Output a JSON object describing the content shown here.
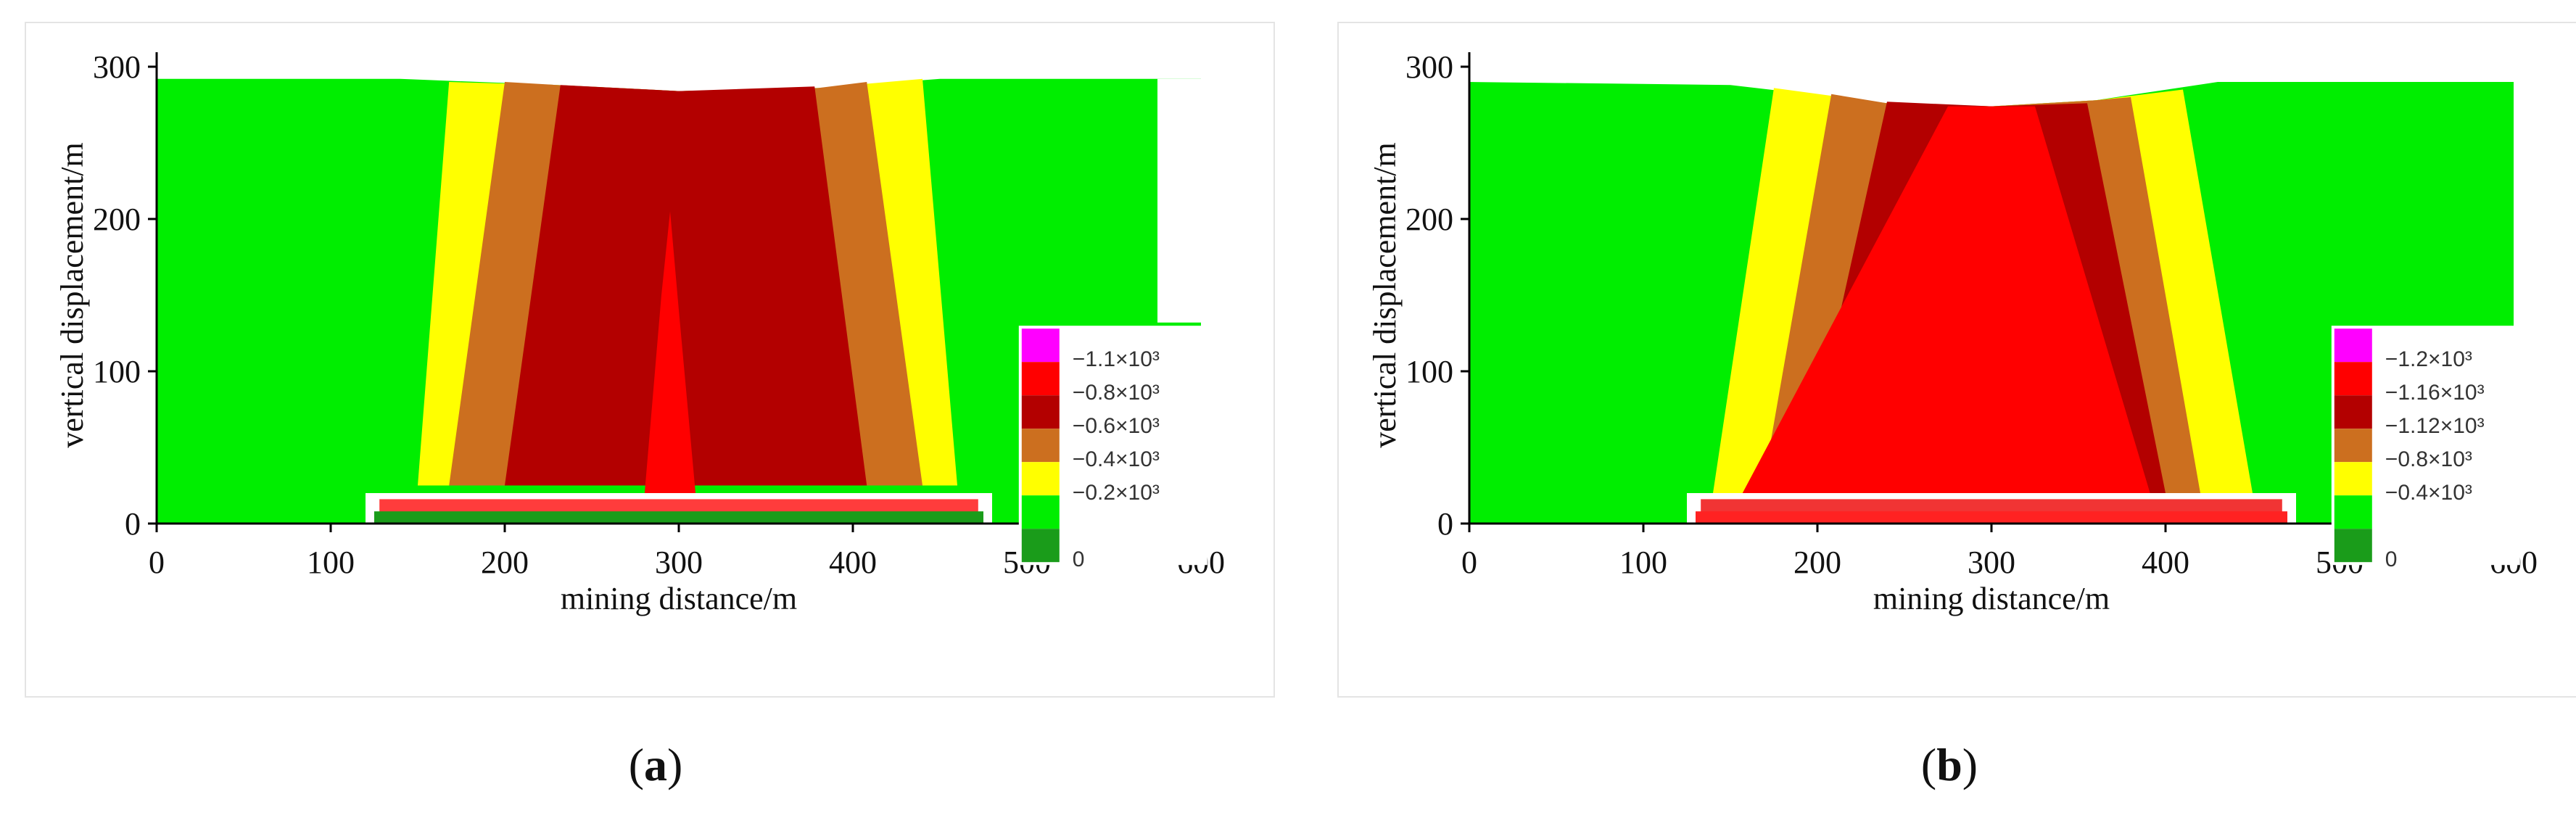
{
  "figures": [
    {
      "id": "a",
      "caption_letter": "a",
      "chart_data": {
        "type": "heatmap",
        "title": "",
        "xlabel": "mining distance/m",
        "ylabel": "vertical displacement/m",
        "xlim": [
          0,
          600
        ],
        "ylim": [
          0,
          300
        ],
        "x_ticks": [
          0,
          100,
          200,
          300,
          400,
          500,
          600
        ],
        "y_ticks": [
          0,
          100,
          200,
          300
        ],
        "legend_position": "bottom-right",
        "legend": [
          {
            "label": "−1.1×10³",
            "color": "#ff00ff"
          },
          {
            "label": "−0.8×10³",
            "color": "#ff0000"
          },
          {
            "label": "−0.6×10³",
            "color": "#b30000"
          },
          {
            "label": "−0.4×10³",
            "color": "#cc6f1f"
          },
          {
            "label": "−0.2×10³",
            "color": "#ffff00"
          },
          {
            "label": "",
            "color": "#00ee00"
          },
          {
            "label": "0",
            "color": "#1a9c1a"
          }
        ],
        "surface_top": [
          [
            0,
            292
          ],
          [
            140,
            292
          ],
          [
            230,
            288
          ],
          [
            300,
            284
          ],
          [
            380,
            286
          ],
          [
            450,
            292
          ],
          [
            600,
            292
          ]
        ],
        "right_step": [
          [
            600,
            132
          ]
        ],
        "zones": [
          {
            "level": "−0.2×10³",
            "color": "#ffff00",
            "left": [
              [
                168,
                290
              ],
              [
                150,
                25
              ]
            ],
            "right": [
              [
                440,
                292
              ],
              [
                460,
                25
              ]
            ]
          },
          {
            "level": "−0.4×10³",
            "color": "#cc6f1f",
            "left": [
              [
                200,
                290
              ],
              [
                168,
                25
              ]
            ],
            "right": [
              [
                408,
                290
              ],
              [
                440,
                25
              ]
            ]
          },
          {
            "level": "−0.6×10³",
            "color": "#b30000",
            "left": [
              [
                232,
                288
              ],
              [
                200,
                25
              ]
            ],
            "right": [
              [
                378,
                287
              ],
              [
                408,
                25
              ]
            ]
          },
          {
            "level": "−0.8×10³",
            "color": "#ff0000",
            "peak": [
              [
                280,
                15
              ],
              [
                290,
                150
              ],
              [
                295,
                205
              ],
              [
                300,
                140
              ],
              [
                310,
                15
              ]
            ]
          }
        ],
        "goaf": {
          "x_range": [
            120,
            480
          ],
          "y_range": [
            0,
            20
          ]
        }
      }
    },
    {
      "id": "b",
      "caption_letter": "b",
      "chart_data": {
        "type": "heatmap",
        "title": "",
        "xlabel": "mining distance/m",
        "ylabel": "vertical displacement/m",
        "xlim": [
          0,
          600
        ],
        "ylim": [
          0,
          300
        ],
        "x_ticks": [
          0,
          100,
          200,
          300,
          400,
          500,
          600
        ],
        "y_ticks": [
          0,
          100,
          200,
          300
        ],
        "legend_position": "bottom-right",
        "legend": [
          {
            "label": "−1.2×10³",
            "color": "#ff00ff"
          },
          {
            "label": "−1.16×10³",
            "color": "#ff0000"
          },
          {
            "label": "−1.12×10³",
            "color": "#b30000"
          },
          {
            "label": "−0.8×10³",
            "color": "#cc6f1f"
          },
          {
            "label": "−0.4×10³",
            "color": "#ffff00"
          },
          {
            "label": "",
            "color": "#00ee00"
          },
          {
            "label": "0",
            "color": "#1a9c1a"
          }
        ],
        "surface_top": [
          [
            0,
            290
          ],
          [
            150,
            288
          ],
          [
            240,
            276
          ],
          [
            300,
            274
          ],
          [
            360,
            278
          ],
          [
            430,
            290
          ],
          [
            600,
            290
          ]
        ],
        "zones": [
          {
            "level": "−0.4×10³",
            "color": "#ffff00",
            "left": [
              [
                175,
                286
              ],
              [
                140,
                20
              ]
            ],
            "right": [
              [
                410,
                285
              ],
              [
                450,
                20
              ]
            ]
          },
          {
            "level": "−0.8×10³",
            "color": "#cc6f1f",
            "left": [
              [
                208,
                282
              ],
              [
                168,
                20
              ]
            ],
            "right": [
              [
                380,
                280
              ],
              [
                420,
                20
              ]
            ]
          },
          {
            "level": "−1.12×10³",
            "color": "#b30000",
            "left": [
              [
                240,
                277
              ],
              [
                190,
                20
              ]
            ],
            "right": [
              [
                355,
                276
              ],
              [
                400,
                20
              ]
            ]
          },
          {
            "level": "−1.16×10³",
            "color": "#ff0000",
            "left": [
              [
                275,
                274
              ],
              [
                150,
                5
              ]
            ],
            "right": [
              [
                325,
                274
              ],
              [
                395,
                5
              ]
            ]
          }
        ],
        "goaf": {
          "x_range": [
            125,
            475
          ],
          "y_range": [
            0,
            20
          ]
        }
      }
    }
  ]
}
